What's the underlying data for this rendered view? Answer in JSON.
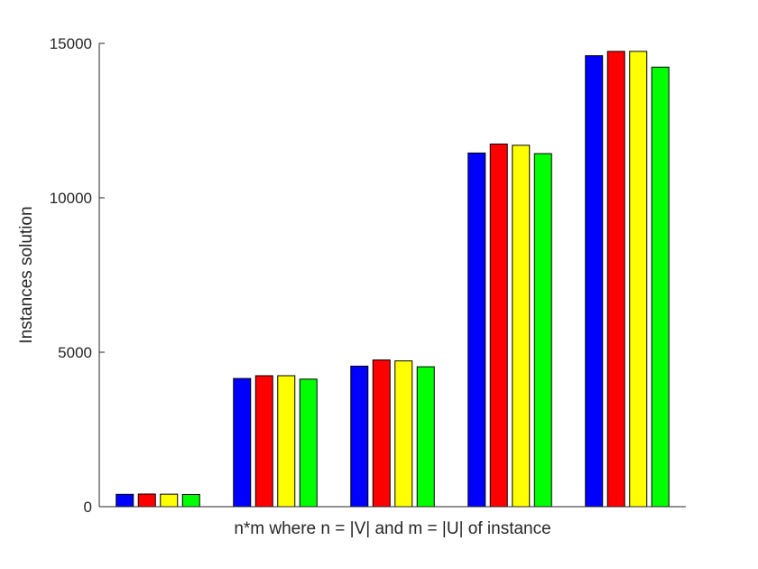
{
  "chart_data": {
    "type": "bar",
    "title": "",
    "xlabel": "n*m where n = |V| and m = |U| of instance",
    "ylabel": "Instances solution",
    "ylim": [
      0,
      15000
    ],
    "yticks": [
      0,
      5000,
      10000,
      15000
    ],
    "yticklabels": [
      "0",
      "5000",
      "10000",
      "15000"
    ],
    "grid": false,
    "legend": "none",
    "categories": [
      "",
      "",
      "",
      "",
      ""
    ],
    "series": [
      {
        "color": "#0000ff",
        "values": [
          400,
          4150,
          4550,
          11450,
          14600
        ]
      },
      {
        "color": "#ff0000",
        "values": [
          410,
          4240,
          4750,
          11740,
          14740
        ]
      },
      {
        "color": "#ffff00",
        "values": [
          405,
          4240,
          4720,
          11700,
          14740
        ]
      },
      {
        "color": "#00ff00",
        "values": [
          395,
          4130,
          4530,
          11430,
          14230
        ]
      }
    ]
  }
}
